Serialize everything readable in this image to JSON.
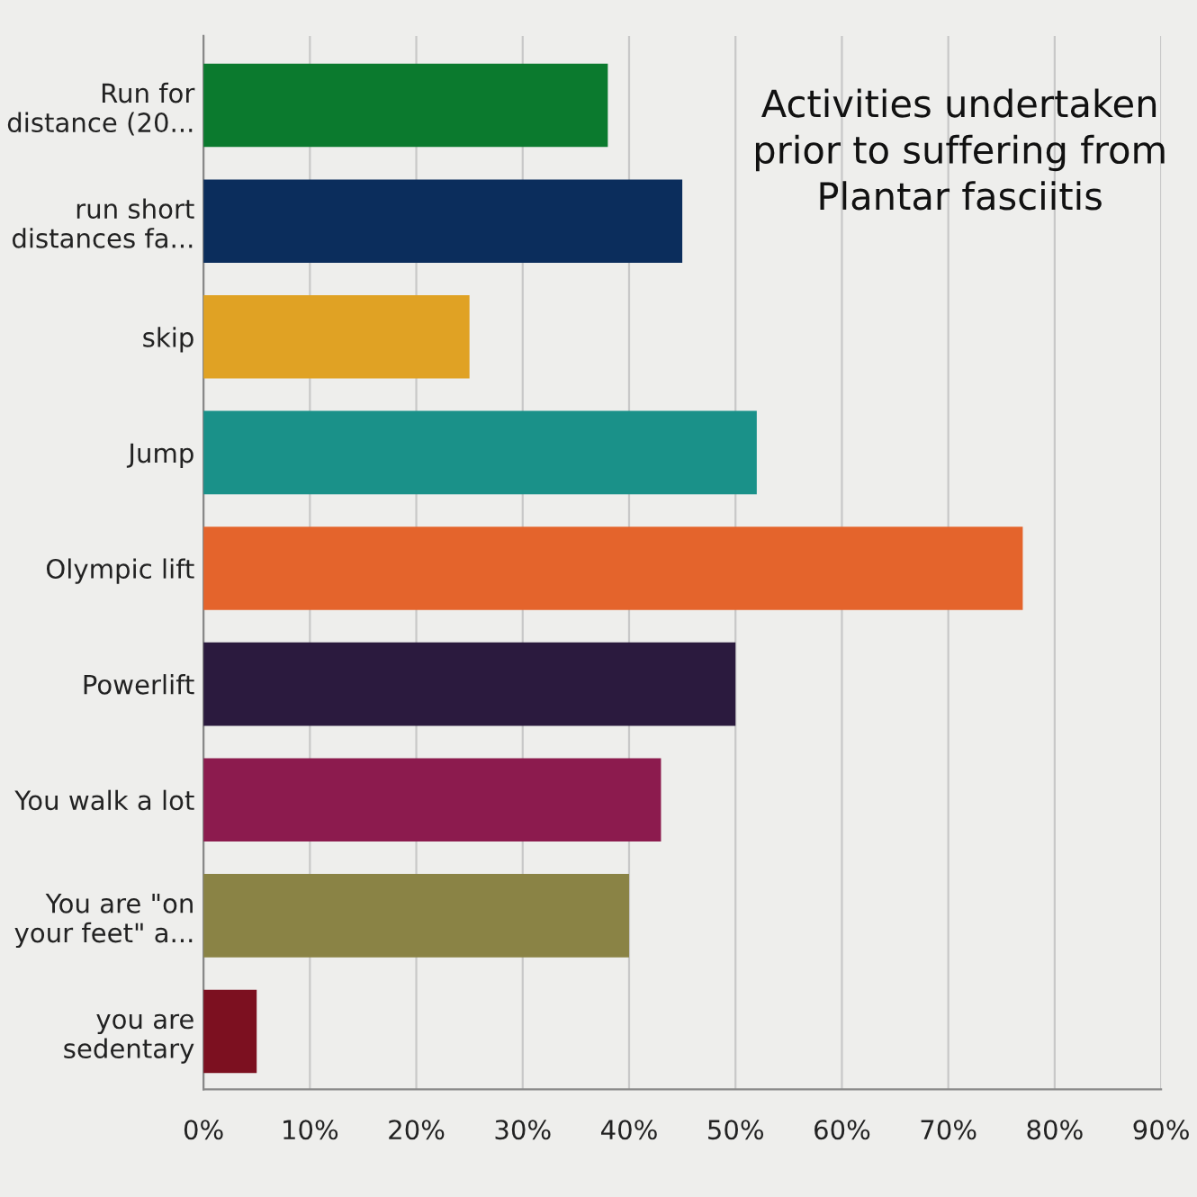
{
  "chart_data": {
    "type": "bar",
    "orientation": "horizontal",
    "title": "Activities undertaken\nprior to suffering from\nPlantar fasciitis",
    "categories": [
      "Run for\ndistance (20...",
      "run short\ndistances fa...",
      "skip",
      "Jump",
      "Olympic lift",
      "Powerlift",
      "You walk a lot",
      "You are \"on\nyour feet\" a...",
      "you are\nsedentary"
    ],
    "values": [
      38,
      45,
      25,
      52,
      77,
      50,
      43,
      40,
      5
    ],
    "colors": [
      "#0b7a2e",
      "#0b2d5c",
      "#e0a224",
      "#1a9189",
      "#e4642c",
      "#2b1a3e",
      "#8c1b4e",
      "#8a8345",
      "#7c1020"
    ],
    "xlim": [
      0,
      90
    ],
    "xticks": [
      {
        "value": 0,
        "label": "0%"
      },
      {
        "value": 10,
        "label": "10%"
      },
      {
        "value": 20,
        "label": "20%"
      },
      {
        "value": 30,
        "label": "30%"
      },
      {
        "value": 40,
        "label": "40%"
      },
      {
        "value": 50,
        "label": "50%"
      },
      {
        "value": 60,
        "label": "60%"
      },
      {
        "value": 70,
        "label": "70%"
      },
      {
        "value": 80,
        "label": "80%"
      },
      {
        "value": 90,
        "label": "90%"
      }
    ],
    "grid": "x",
    "legend": false
  }
}
